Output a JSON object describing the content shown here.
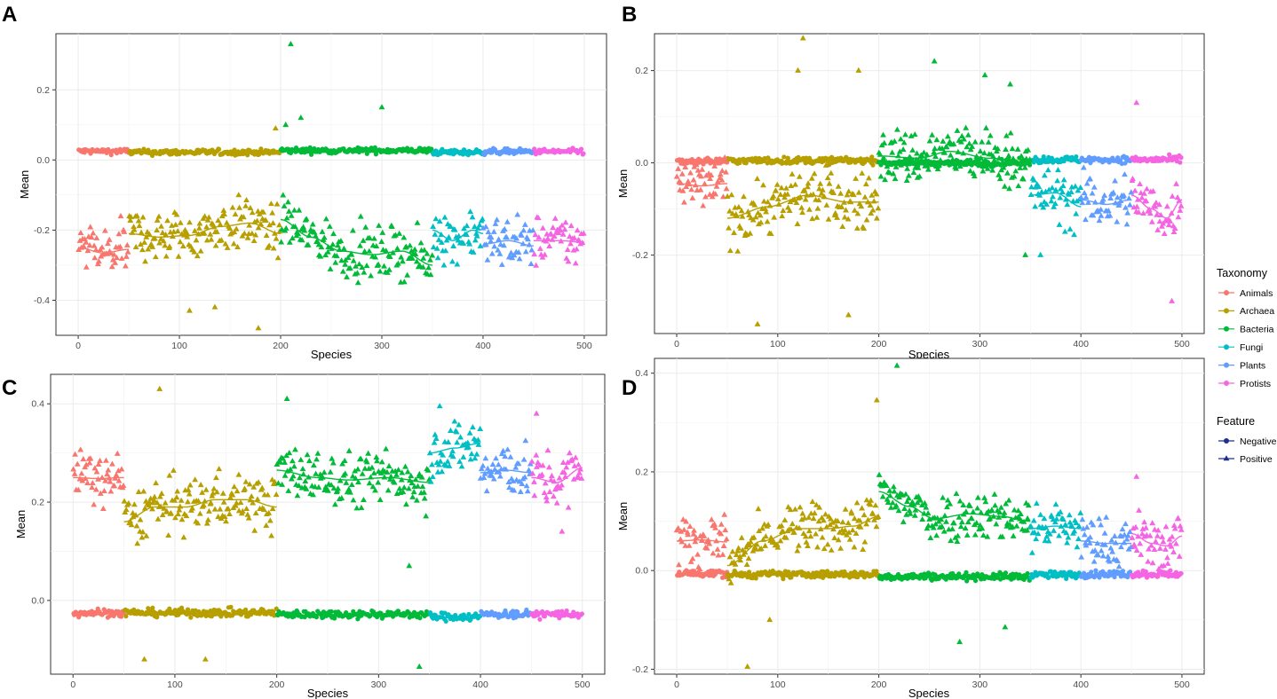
{
  "figure": {
    "series_colors": {
      "Animals": "#F8766D",
      "Archaea": "#B79F00",
      "Bacteria": "#00BA38",
      "Fungi": "#00BFC4",
      "Plants": "#619CFF",
      "Protists": "#F564E3"
    },
    "feature_color": "#1f2f8c",
    "legend": {
      "taxonomy_title": "Taxonomy",
      "taxonomy_items": [
        "Animals",
        "Archaea",
        "Bacteria",
        "Fungi",
        "Plants",
        "Protists"
      ],
      "feature_title": "Feature",
      "feature_items": [
        "Negative",
        "Positive"
      ]
    }
  },
  "chart_data": [
    {
      "panel": "A",
      "type": "scatter",
      "xlabel": "Species",
      "ylabel": "Mean",
      "xlim": [
        -22,
        522
      ],
      "ylim": [
        -0.5,
        0.36
      ],
      "xticks": [
        0,
        100,
        200,
        300,
        400,
        500
      ],
      "yticks": [
        0.2,
        0.0,
        -0.2,
        -0.4
      ],
      "ytick_labels": [
        "0.2",
        "0.0",
        "-0.2",
        "-0.4"
      ],
      "negative": {
        "Animals": 0.025,
        "Archaea": 0.022,
        "Bacteria": 0.027,
        "Fungi": 0.022,
        "Plants": 0.024,
        "Protists": 0.024,
        "spread": 0.009
      },
      "positive_trend": {
        "Animals": [
          [
            0,
            -0.25
          ],
          [
            25,
            -0.265
          ],
          [
            50,
            -0.255
          ]
        ],
        "Archaea": [
          [
            50,
            -0.21
          ],
          [
            80,
            -0.22
          ],
          [
            110,
            -0.215
          ],
          [
            140,
            -0.19
          ],
          [
            170,
            -0.18
          ],
          [
            200,
            -0.21
          ]
        ],
        "Bacteria": [
          [
            200,
            -0.17
          ],
          [
            230,
            -0.22
          ],
          [
            260,
            -0.26
          ],
          [
            290,
            -0.27
          ],
          [
            320,
            -0.26
          ],
          [
            350,
            -0.3
          ]
        ],
        "Fungi": [
          [
            350,
            -0.2
          ],
          [
            370,
            -0.23
          ],
          [
            390,
            -0.2
          ],
          [
            400,
            -0.21
          ]
        ],
        "Plants": [
          [
            400,
            -0.24
          ],
          [
            425,
            -0.23
          ],
          [
            450,
            -0.245
          ]
        ],
        "Protists": [
          [
            450,
            -0.23
          ],
          [
            475,
            -0.23
          ],
          [
            500,
            -0.235
          ]
        ],
        "spread": 0.065
      },
      "outliers": [
        [
          210,
          0.33
        ],
        [
          220,
          0.12
        ],
        [
          300,
          0.15
        ],
        [
          178,
          -0.48
        ],
        [
          110,
          -0.43
        ],
        [
          135,
          -0.42
        ],
        [
          195,
          0.09
        ],
        [
          205,
          0.1
        ]
      ]
    },
    {
      "panel": "B",
      "type": "scatter",
      "xlabel": "Species",
      "ylabel": "Mean",
      "xlim": [
        -22,
        522
      ],
      "ylim": [
        -0.37,
        0.28
      ],
      "xticks": [
        0,
        100,
        200,
        300,
        400,
        500
      ],
      "yticks": [
        0.2,
        0.0,
        -0.2
      ],
      "ytick_labels": [
        "0.2",
        "0.0",
        "-0.2"
      ],
      "negative": {
        "Animals": 0.004,
        "Archaea": 0.005,
        "Bacteria": 0.0,
        "Fungi": 0.007,
        "Plants": 0.007,
        "Protists": 0.007,
        "spread": 0.008
      },
      "positive_trend": {
        "Animals": [
          [
            0,
            -0.045
          ],
          [
            25,
            -0.05
          ],
          [
            50,
            -0.045
          ]
        ],
        "Archaea": [
          [
            50,
            -0.12
          ],
          [
            90,
            -0.095
          ],
          [
            130,
            -0.07
          ],
          [
            170,
            -0.085
          ],
          [
            200,
            -0.085
          ]
        ],
        "Bacteria": [
          [
            200,
            0.015
          ],
          [
            240,
            0.01
          ],
          [
            270,
            0.025
          ],
          [
            310,
            0.01
          ],
          [
            350,
            0.0
          ]
        ],
        "Fungi": [
          [
            350,
            -0.07
          ],
          [
            375,
            -0.065
          ],
          [
            400,
            -0.095
          ]
        ],
        "Plants": [
          [
            400,
            -0.08
          ],
          [
            425,
            -0.09
          ],
          [
            450,
            -0.08
          ]
        ],
        "Protists": [
          [
            450,
            -0.07
          ],
          [
            470,
            -0.1
          ],
          [
            485,
            -0.12
          ],
          [
            500,
            -0.08
          ]
        ],
        "spread": 0.055
      },
      "outliers": [
        [
          125,
          0.27
        ],
        [
          80,
          -0.35
        ],
        [
          180,
          0.2
        ],
        [
          120,
          0.2
        ],
        [
          170,
          -0.33
        ],
        [
          255,
          0.22
        ],
        [
          305,
          0.19
        ],
        [
          330,
          0.17
        ],
        [
          345,
          -0.2
        ],
        [
          360,
          -0.2
        ],
        [
          455,
          0.13
        ],
        [
          490,
          -0.3
        ]
      ]
    },
    {
      "panel": "C",
      "type": "scatter",
      "xlabel": "Species",
      "ylabel": "Mean",
      "xlim": [
        -22,
        522
      ],
      "ylim": [
        -0.15,
        0.46
      ],
      "xticks": [
        0,
        100,
        200,
        300,
        400,
        500
      ],
      "yticks": [
        0.4,
        0.2,
        0.0
      ],
      "ytick_labels": [
        "0.4",
        "0.2",
        "0.0"
      ],
      "negative": {
        "Animals": -0.025,
        "Archaea": -0.025,
        "Bacteria": -0.028,
        "Fungi": -0.033,
        "Plants": -0.028,
        "Protists": -0.028,
        "spread": 0.009
      },
      "positive_trend": {
        "Animals": [
          [
            0,
            0.25
          ],
          [
            25,
            0.248
          ],
          [
            50,
            0.25
          ]
        ],
        "Archaea": [
          [
            50,
            0.16
          ],
          [
            80,
            0.19
          ],
          [
            110,
            0.19
          ],
          [
            140,
            0.205
          ],
          [
            170,
            0.205
          ],
          [
            200,
            0.19
          ]
        ],
        "Bacteria": [
          [
            200,
            0.265
          ],
          [
            240,
            0.25
          ],
          [
            270,
            0.245
          ],
          [
            310,
            0.25
          ],
          [
            350,
            0.24
          ]
        ],
        "Fungi": [
          [
            350,
            0.3
          ],
          [
            375,
            0.31
          ],
          [
            400,
            0.32
          ]
        ],
        "Plants": [
          [
            400,
            0.26
          ],
          [
            425,
            0.265
          ],
          [
            450,
            0.26
          ]
        ],
        "Protists": [
          [
            450,
            0.25
          ],
          [
            475,
            0.24
          ],
          [
            500,
            0.27
          ]
        ],
        "spread": 0.05
      },
      "outliers": [
        [
          85,
          0.43
        ],
        [
          70,
          -0.12
        ],
        [
          130,
          -0.12
        ],
        [
          340,
          -0.135
        ],
        [
          210,
          0.41
        ],
        [
          455,
          0.38
        ],
        [
          480,
          0.14
        ],
        [
          330,
          0.07
        ],
        [
          360,
          0.395
        ]
      ]
    },
    {
      "panel": "D",
      "type": "scatter",
      "xlabel": "Species",
      "ylabel": "Mean",
      "xlim": [
        -22,
        522
      ],
      "ylim": [
        -0.21,
        0.43
      ],
      "xticks": [
        0,
        100,
        200,
        300,
        400,
        500
      ],
      "yticks": [
        0.4,
        0.2,
        0.0,
        -0.2
      ],
      "ytick_labels": [
        "0.4",
        "0.2",
        "0.0",
        "-0.2"
      ],
      "negative": {
        "Animals": -0.006,
        "Archaea": -0.008,
        "Bacteria": -0.012,
        "Fungi": -0.009,
        "Plants": -0.007,
        "Protists": -0.007,
        "spread": 0.008
      },
      "positive_trend": {
        "Animals": [
          [
            0,
            0.06
          ],
          [
            25,
            0.062
          ],
          [
            50,
            0.058
          ]
        ],
        "Archaea": [
          [
            50,
            0.01
          ],
          [
            85,
            0.06
          ],
          [
            120,
            0.085
          ],
          [
            150,
            0.085
          ],
          [
            175,
            0.09
          ],
          [
            200,
            0.11
          ]
        ],
        "Bacteria": [
          [
            200,
            0.16
          ],
          [
            230,
            0.13
          ],
          [
            255,
            0.105
          ],
          [
            290,
            0.115
          ],
          [
            320,
            0.11
          ],
          [
            350,
            0.1
          ]
        ],
        "Fungi": [
          [
            350,
            0.085
          ],
          [
            375,
            0.09
          ],
          [
            400,
            0.085
          ]
        ],
        "Plants": [
          [
            400,
            0.06
          ],
          [
            425,
            0.055
          ],
          [
            450,
            0.055
          ]
        ],
        "Protists": [
          [
            450,
            0.075
          ],
          [
            470,
            0.055
          ],
          [
            485,
            0.05
          ],
          [
            500,
            0.07
          ]
        ],
        "spread": 0.045
      },
      "outliers": [
        [
          218,
          0.415
        ],
        [
          198,
          0.345
        ],
        [
          70,
          -0.195
        ],
        [
          280,
          -0.145
        ],
        [
          455,
          0.19
        ],
        [
          325,
          -0.115
        ],
        [
          92,
          -0.1
        ]
      ]
    }
  ]
}
